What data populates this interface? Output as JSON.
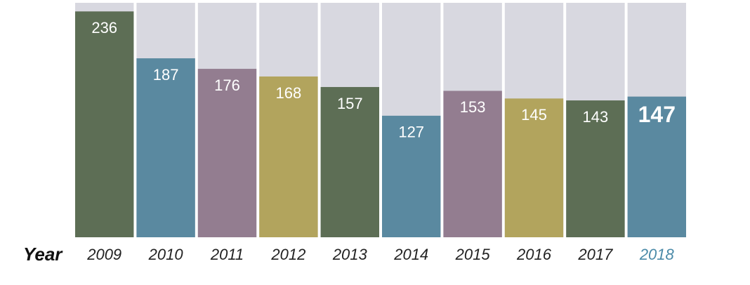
{
  "chart_data": {
    "type": "bar",
    "x_label": "Year",
    "categories": [
      "2009",
      "2010",
      "2011",
      "2012",
      "2013",
      "2014",
      "2015",
      "2016",
      "2017",
      "2018"
    ],
    "values": [
      236,
      187,
      176,
      168,
      157,
      127,
      153,
      145,
      143,
      147
    ],
    "colors": [
      "#5d6e55",
      "#5a89a0",
      "#937d90",
      "#b2a45d",
      "#5d6e55",
      "#5a89a0",
      "#937d90",
      "#b2a45d",
      "#5d6e55",
      "#5a89a0"
    ],
    "background_color": "#d8d8e0",
    "ylim": [
      0,
      245
    ]
  }
}
